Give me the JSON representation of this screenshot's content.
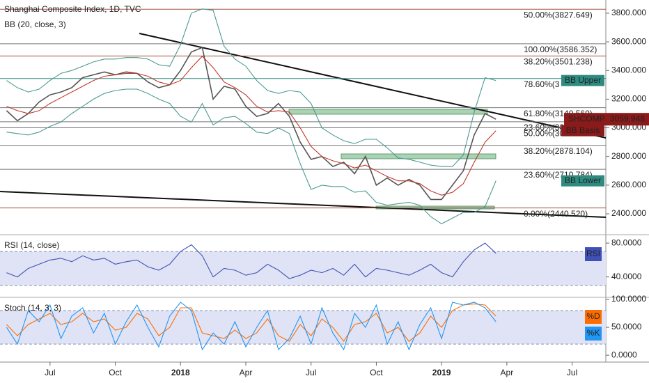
{
  "chart_data": [
    {
      "type": "line",
      "title": "Shanghai Composite Index, 1D, TVC",
      "subtitle": "BB (20, close, 3)",
      "x": [
        -4,
        -3,
        -2,
        -1,
        0,
        1,
        2,
        3,
        4,
        5,
        6,
        7,
        8,
        9,
        10,
        11,
        12,
        13,
        14,
        15,
        16,
        17,
        18,
        19,
        20,
        21,
        22,
        23,
        24,
        25,
        26,
        27,
        28,
        29,
        30,
        31,
        32,
        33,
        34,
        35,
        36,
        37,
        38,
        39,
        40,
        41
      ],
      "xlim": [
        -4.6,
        51.1
      ],
      "ylim": [
        2264,
        3892
      ],
      "yticks": [
        {
          "value": 2400,
          "label": "2400.000"
        },
        {
          "value": 2600,
          "label": "2600.000"
        },
        {
          "value": 2800,
          "label": "2800.000"
        },
        {
          "value": 3000,
          "label": "3000.000"
        },
        {
          "value": 3200,
          "label": "3200.000"
        },
        {
          "value": 3400,
          "label": "3400.000"
        },
        {
          "value": 3600,
          "label": "3600.000"
        },
        {
          "value": 3800,
          "label": "3800.000"
        }
      ],
      "series": [
        {
          "name": "SHCOMP",
          "color": "#555555",
          "values": [
            3120,
            3050,
            3100,
            3180,
            3230,
            3250,
            3280,
            3350,
            3370,
            3390,
            3370,
            3390,
            3380,
            3320,
            3280,
            3300,
            3400,
            3530,
            3560,
            3200,
            3290,
            3270,
            3150,
            3080,
            3100,
            3170,
            3080,
            2900,
            2780,
            2800,
            2730,
            2760,
            2680,
            2800,
            2600,
            2650,
            2600,
            2640,
            2600,
            2500,
            2500,
            2600,
            2700,
            2950,
            3100,
            3059.948
          ]
        },
        {
          "name": "BB Upper",
          "color": "#4a9a90",
          "values": [
            3330,
            3280,
            3250,
            3270,
            3330,
            3380,
            3400,
            3430,
            3460,
            3480,
            3480,
            3490,
            3490,
            3480,
            3440,
            3430,
            3580,
            3800,
            3830,
            3820,
            3570,
            3480,
            3430,
            3330,
            3260,
            3240,
            3260,
            3250,
            3170,
            3000,
            2950,
            2910,
            2890,
            2920,
            2920,
            2860,
            2790,
            2780,
            2760,
            2740,
            2730,
            2730,
            2810,
            3110,
            3350,
            3330
          ]
        },
        {
          "name": "BB Basis",
          "color": "#c0392b",
          "values": [
            3150,
            3120,
            3100,
            3120,
            3170,
            3210,
            3250,
            3290,
            3330,
            3360,
            3370,
            3380,
            3380,
            3360,
            3320,
            3300,
            3330,
            3420,
            3500,
            3420,
            3320,
            3280,
            3230,
            3150,
            3110,
            3120,
            3110,
            3000,
            2870,
            2800,
            2770,
            2750,
            2720,
            2740,
            2700,
            2660,
            2630,
            2630,
            2610,
            2560,
            2530,
            2550,
            2610,
            2760,
            2900,
            2980
          ]
        },
        {
          "name": "BB Lower",
          "color": "#4a9a90",
          "values": [
            2970,
            2960,
            2950,
            2970,
            3010,
            3040,
            3100,
            3150,
            3200,
            3240,
            3260,
            3270,
            3270,
            3240,
            3200,
            3170,
            3080,
            3040,
            3170,
            3020,
            3070,
            3080,
            3030,
            2970,
            2960,
            3000,
            2960,
            2750,
            2570,
            2600,
            2590,
            2590,
            2550,
            2560,
            2480,
            2460,
            2470,
            2480,
            2460,
            2380,
            2330,
            2370,
            2410,
            2410,
            2450,
            2630
          ]
        }
      ],
      "levels": [
        {
          "value": 3827.649,
          "label": "50.00%(3827.649)",
          "color": "#a0503f"
        },
        {
          "value": 3586.352,
          "label": "100.00%(3586.352)",
          "color": "#777777"
        },
        {
          "value": 3501.238,
          "label": "38.20%(3501.238)",
          "color": "#a0503f"
        },
        {
          "value": 3344,
          "label": "78.60%(3",
          "color": "#2e8b80"
        },
        {
          "value": 3140.56,
          "label": "61.80%(3140.560)",
          "color": "#777777"
        },
        {
          "value": 3042,
          "label": "23.60%(30",
          "color": "#777777"
        },
        {
          "value": 3000,
          "label": "50.00%(30",
          "color": "#777777"
        },
        {
          "value": 2878.104,
          "label": "38.20%(2878.104)",
          "color": "#777777"
        },
        {
          "value": 2710.784,
          "label": "23.60%(2710.784)",
          "color": "#777777"
        },
        {
          "value": 2440.52,
          "label": "0.00%(2440.520)",
          "color": "#a0503f"
        }
      ]
    },
    {
      "type": "line",
      "title": "RSI (14, close)",
      "x": [
        -4,
        -3,
        -2,
        -1,
        0,
        1,
        2,
        3,
        4,
        5,
        6,
        7,
        8,
        9,
        10,
        11,
        12,
        13,
        14,
        15,
        16,
        17,
        18,
        19,
        20,
        21,
        22,
        23,
        24,
        25,
        26,
        27,
        28,
        29,
        30,
        31,
        32,
        33,
        34,
        35,
        36,
        37,
        38,
        39,
        40,
        41
      ],
      "xlim": [
        -4.6,
        51.1
      ],
      "ylim": [
        17.5,
        88.3
      ],
      "yticks": [
        {
          "value": 80,
          "label": "80.0000"
        },
        {
          "value": 40,
          "label": "40.0000"
        }
      ],
      "band": [
        30,
        70
      ],
      "series": [
        {
          "name": "RSI",
          "color": "#3f51b5",
          "values": [
            45,
            40,
            50,
            55,
            60,
            62,
            58,
            65,
            60,
            62,
            55,
            58,
            60,
            52,
            48,
            55,
            70,
            78,
            65,
            40,
            50,
            48,
            42,
            45,
            55,
            48,
            38,
            42,
            48,
            45,
            50,
            42,
            55,
            40,
            50,
            48,
            45,
            42,
            48,
            55,
            45,
            40,
            58,
            72,
            80,
            68
          ]
        }
      ]
    },
    {
      "type": "line",
      "title": "Stoch (14, 3, 3)",
      "x": [
        -4,
        -3,
        -2,
        -1,
        0,
        1,
        2,
        3,
        4,
        5,
        6,
        7,
        8,
        9,
        10,
        11,
        12,
        13,
        14,
        15,
        16,
        17,
        18,
        19,
        20,
        21,
        22,
        23,
        24,
        25,
        26,
        27,
        28,
        29,
        30,
        31,
        32,
        33,
        34,
        35,
        36,
        37,
        38,
        39,
        40,
        41
      ],
      "xlim": [
        -4.6,
        51.1
      ],
      "ylim": [
        -9.8,
        101.2
      ],
      "yticks": [
        {
          "value": 100,
          "label": "100.0000"
        },
        {
          "value": 50,
          "label": "50.0000"
        },
        {
          "value": 0,
          "label": "0.0000"
        }
      ],
      "band": [
        20,
        80
      ],
      "series": [
        {
          "name": "%D",
          "color": "#ff6d00",
          "values": [
            55,
            35,
            55,
            65,
            75,
            55,
            60,
            75,
            60,
            65,
            45,
            50,
            75,
            65,
            35,
            50,
            85,
            85,
            40,
            35,
            30,
            45,
            30,
            40,
            65,
            35,
            25,
            55,
            35,
            65,
            50,
            25,
            55,
            60,
            75,
            40,
            50,
            25,
            40,
            70,
            50,
            80,
            90,
            92,
            90,
            70
          ]
        },
        {
          "name": "%K",
          "color": "#2196f3",
          "values": [
            50,
            20,
            80,
            60,
            90,
            30,
            70,
            85,
            40,
            75,
            20,
            60,
            90,
            50,
            15,
            70,
            95,
            80,
            10,
            40,
            20,
            60,
            15,
            50,
            80,
            10,
            30,
            70,
            20,
            85,
            40,
            10,
            75,
            50,
            90,
            20,
            60,
            10,
            55,
            85,
            30,
            95,
            90,
            95,
            85,
            60
          ]
        }
      ],
      "xticks": [
        {
          "value": 0,
          "label": "Jul"
        },
        {
          "value": 6,
          "label": "Oct"
        },
        {
          "value": 12,
          "label": "2018"
        },
        {
          "value": 18,
          "label": "Apr"
        },
        {
          "value": 24,
          "label": "Jul"
        },
        {
          "value": 30,
          "label": "Oct"
        },
        {
          "value": 36,
          "label": "2019"
        },
        {
          "value": 42,
          "label": "Apr"
        },
        {
          "value": 48,
          "label": "Jul"
        }
      ]
    }
  ]
}
